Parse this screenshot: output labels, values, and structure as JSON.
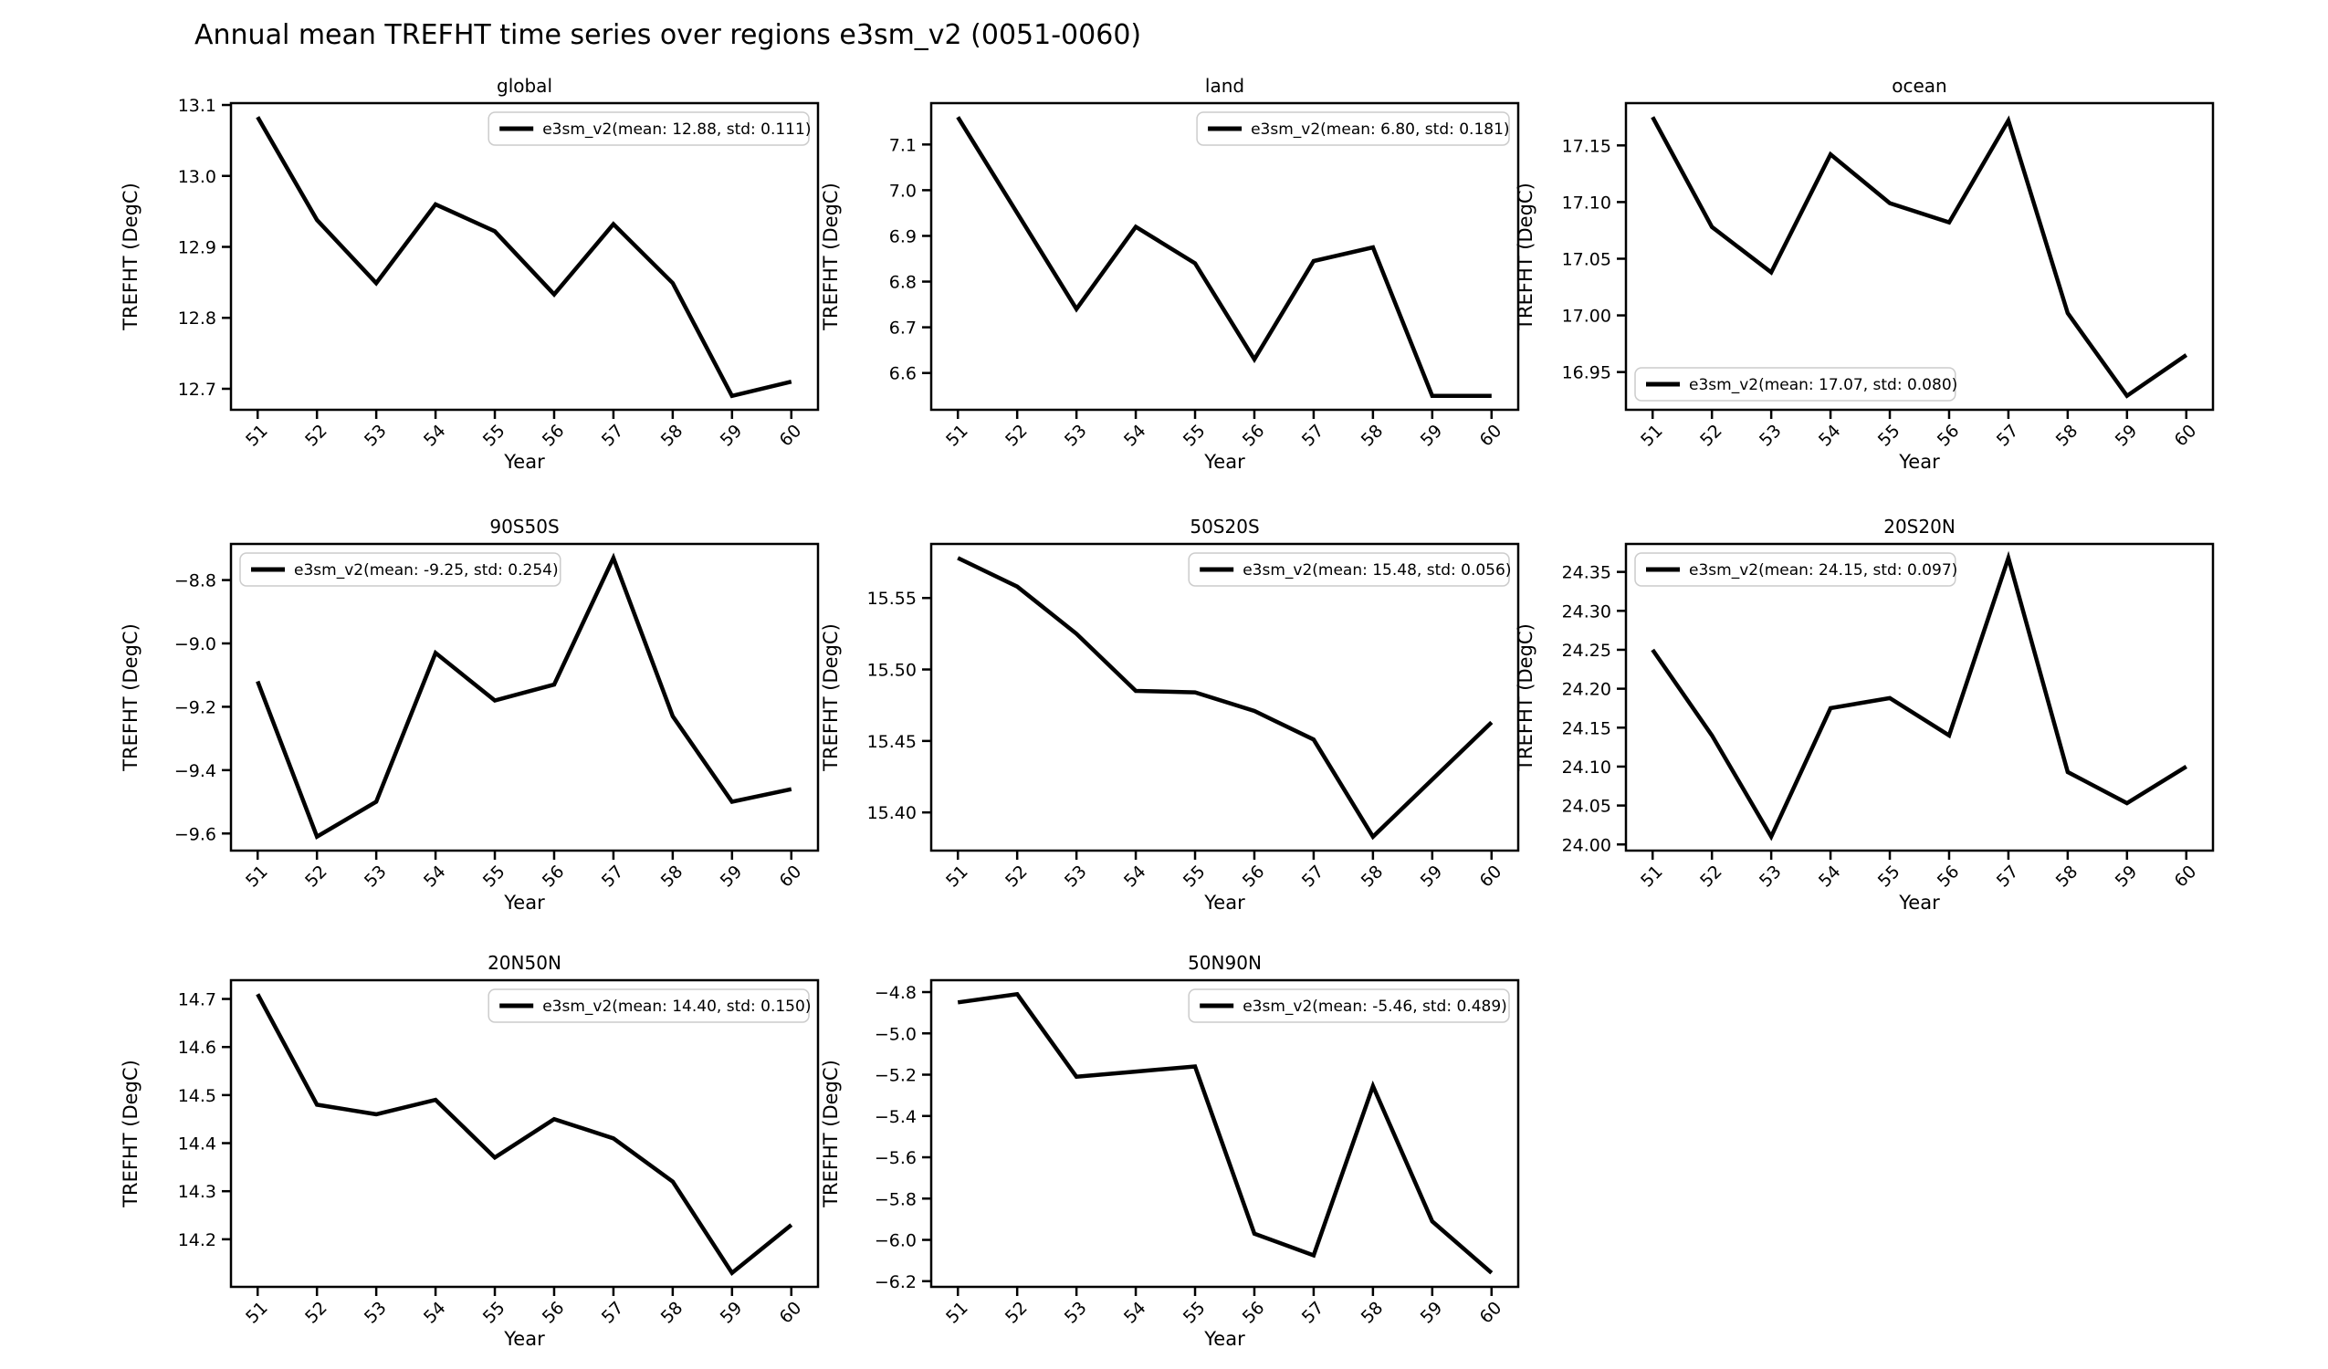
{
  "figure_title": "Annual mean TREFHT time series over regions e3sm_v2 (0051-0060)",
  "axis": {
    "xlabel": "Year",
    "ylabel": "TREFHT (DegC)"
  },
  "series_name": "e3sm_v2",
  "line_color": "#000000",
  "legend_border_color": "#cccccc",
  "chart_data": [
    {
      "type": "line",
      "title": "global",
      "xlabel": "Year",
      "ylabel": "TREFHT (DegC)",
      "legend_label": "e3sm_v2(mean: 12.88, std: 0.111)",
      "legend_position": "upper-right",
      "x": [
        51,
        52,
        53,
        54,
        55,
        56,
        57,
        58,
        59,
        60
      ],
      "values": [
        13.083,
        12.938,
        12.849,
        12.96,
        12.922,
        12.833,
        12.932,
        12.849,
        12.69,
        12.71
      ],
      "xlim": [
        50.55,
        60.45
      ],
      "ylim": [
        12.6704,
        13.1026
      ],
      "yticks": [
        12.7,
        12.8,
        12.9,
        13.0,
        13.1
      ],
      "ytick_decimals": 1
    },
    {
      "type": "line",
      "title": "land",
      "xlabel": "Year",
      "ylabel": "TREFHT (DegC)",
      "legend_label": "e3sm_v2(mean: 6.80, std: 0.181)",
      "legend_position": "upper-right",
      "x": [
        51,
        52,
        53,
        54,
        55,
        56,
        57,
        58,
        59,
        60
      ],
      "values": [
        7.16,
        6.95,
        6.74,
        6.92,
        6.84,
        6.63,
        6.845,
        6.875,
        6.55,
        6.55
      ],
      "xlim": [
        50.55,
        60.45
      ],
      "ylim": [
        6.5195,
        7.1905
      ],
      "yticks": [
        6.6,
        6.7,
        6.8,
        6.9,
        7.0,
        7.1
      ],
      "ytick_decimals": 1
    },
    {
      "type": "line",
      "title": "ocean",
      "xlabel": "Year",
      "ylabel": "TREFHT (DegC)",
      "legend_label": "e3sm_v2(mean: 17.07, std: 0.080)",
      "legend_position": "lower-left",
      "x": [
        51,
        52,
        53,
        54,
        55,
        56,
        57,
        58,
        59,
        60
      ],
      "values": [
        17.175,
        17.078,
        17.038,
        17.142,
        17.099,
        17.082,
        17.172,
        17.002,
        16.929,
        16.965
      ],
      "xlim": [
        50.55,
        60.45
      ],
      "ylim": [
        16.9167,
        17.1873
      ],
      "yticks": [
        16.95,
        17.0,
        17.05,
        17.1,
        17.15
      ],
      "ytick_decimals": 2
    },
    {
      "type": "line",
      "title": "90S50S",
      "xlabel": "Year",
      "ylabel": "TREFHT (DegC)",
      "legend_label": "e3sm_v2(mean: -9.25, std: 0.254)",
      "legend_position": "upper-left",
      "x": [
        51,
        52,
        53,
        54,
        55,
        56,
        57,
        58,
        59,
        60
      ],
      "values": [
        -9.12,
        -9.61,
        -9.5,
        -9.03,
        -9.18,
        -9.13,
        -8.73,
        -9.23,
        -9.5,
        -9.46
      ],
      "xlim": [
        50.55,
        60.45
      ],
      "ylim": [
        -9.654,
        -8.686
      ],
      "yticks": [
        -9.6,
        -9.4,
        -9.2,
        -9.0,
        -8.8
      ],
      "ytick_decimals": 1
    },
    {
      "type": "line",
      "title": "50S20S",
      "xlabel": "Year",
      "ylabel": "TREFHT (DegC)",
      "legend_label": "e3sm_v2(mean: 15.48, std: 0.056)",
      "legend_position": "upper-right",
      "x": [
        51,
        52,
        53,
        54,
        55,
        56,
        57,
        58,
        59,
        60
      ],
      "values": [
        15.578,
        15.558,
        15.525,
        15.485,
        15.484,
        15.471,
        15.451,
        15.383,
        15.423,
        15.463
      ],
      "xlim": [
        50.55,
        60.45
      ],
      "ylim": [
        15.3733,
        15.5878
      ],
      "yticks": [
        15.4,
        15.45,
        15.5,
        15.55
      ],
      "ytick_decimals": 2
    },
    {
      "type": "line",
      "title": "20S20N",
      "xlabel": "Year",
      "ylabel": "TREFHT (DegC)",
      "legend_label": "e3sm_v2(mean: 24.15, std: 0.097)",
      "legend_position": "upper-left",
      "x": [
        51,
        52,
        53,
        54,
        55,
        56,
        57,
        58,
        59,
        60
      ],
      "values": [
        24.25,
        24.14,
        24.01,
        24.175,
        24.188,
        24.14,
        24.368,
        24.093,
        24.053,
        24.1
      ],
      "xlim": [
        50.55,
        60.45
      ],
      "ylim": [
        23.9921,
        24.3859
      ],
      "yticks": [
        24.0,
        24.05,
        24.1,
        24.15,
        24.2,
        24.25,
        24.3,
        24.35
      ],
      "ytick_decimals": 2
    },
    {
      "type": "line",
      "title": "20N50N",
      "xlabel": "Year",
      "ylabel": "TREFHT (DegC)",
      "legend_label": "e3sm_v2(mean: 14.40, std: 0.150)",
      "legend_position": "upper-right",
      "x": [
        51,
        52,
        53,
        54,
        55,
        56,
        57,
        58,
        59,
        60
      ],
      "values": [
        14.71,
        14.48,
        14.46,
        14.49,
        14.37,
        14.45,
        14.41,
        14.32,
        14.13,
        14.23
      ],
      "xlim": [
        50.55,
        60.45
      ],
      "ylim": [
        14.101,
        14.739
      ],
      "yticks": [
        14.2,
        14.3,
        14.4,
        14.5,
        14.6,
        14.7
      ],
      "ytick_decimals": 1
    },
    {
      "type": "line",
      "title": "50N90N",
      "xlabel": "Year",
      "ylabel": "TREFHT (DegC)",
      "legend_label": "e3sm_v2(mean: -5.46, std: 0.489)",
      "legend_position": "upper-right",
      "x": [
        51,
        52,
        53,
        54,
        55,
        56,
        57,
        58,
        59,
        60
      ],
      "values": [
        -4.85,
        -4.81,
        -5.21,
        -5.185,
        -5.16,
        -5.97,
        -6.075,
        -5.255,
        -5.91,
        -6.16
      ],
      "xlim": [
        50.55,
        60.45
      ],
      "ylim": [
        -6.2275,
        -4.7425
      ],
      "yticks": [
        -6.2,
        -6.0,
        -5.8,
        -5.6,
        -5.4,
        -5.2,
        -5.0,
        -4.8
      ],
      "ytick_decimals": 1
    }
  ]
}
